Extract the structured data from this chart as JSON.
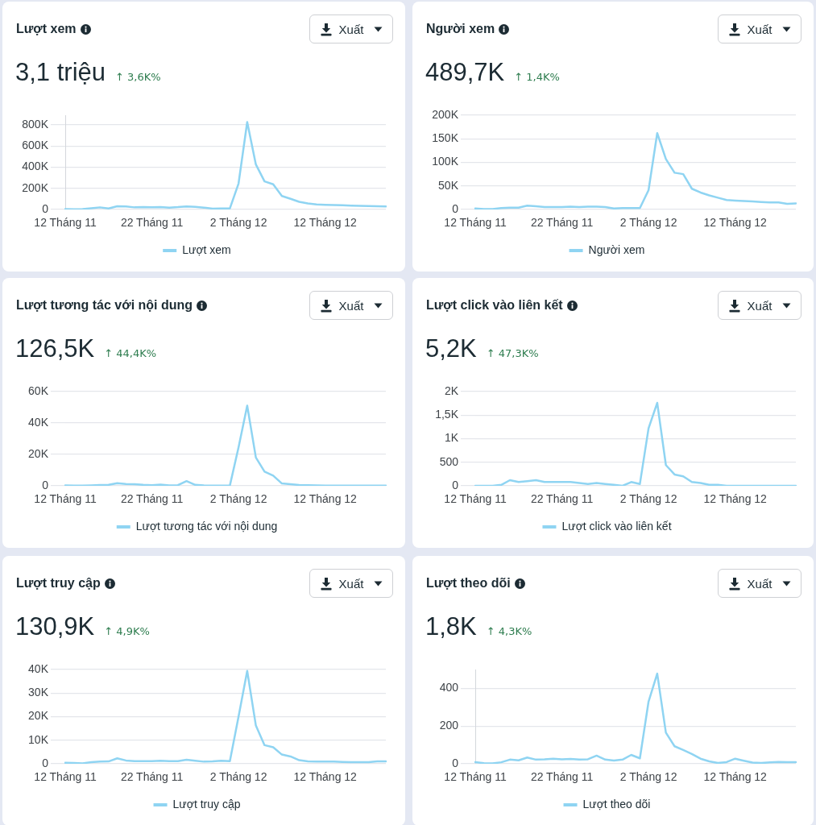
{
  "chart_data": [
    {
      "type": "line",
      "title": "Lượt xem",
      "subtitle": "3,1 triệu",
      "annotations": [
        "↑ 3,6K%",
        "Xuất"
      ],
      "categories": [
        "12 Tháng 11",
        null,
        null,
        null,
        null,
        null,
        null,
        null,
        null,
        null,
        "22 Tháng 11",
        null,
        null,
        null,
        null,
        null,
        null,
        null,
        null,
        null,
        "2 Tháng 12",
        null,
        null,
        null,
        null,
        null,
        null,
        null,
        null,
        null,
        "12 Tháng 12",
        null,
        null,
        null,
        null,
        null,
        null,
        null
      ],
      "series": [
        {
          "name": "Lượt xem",
          "color": "#8fd4f2",
          "values": [
            3000,
            2000,
            4000,
            12000,
            20000,
            10000,
            31000,
            28000,
            20000,
            22000,
            20000,
            22000,
            18000,
            22000,
            28000,
            25000,
            18000,
            8000,
            10000,
            10000,
            245000,
            825000,
            425000,
            265000,
            238000,
            127000,
            101000,
            72000,
            57000,
            47000,
            44000,
            42000,
            39000,
            36000,
            34000,
            32000,
            30000,
            28000
          ]
        }
      ],
      "ylim": [
        0,
        890000
      ],
      "yticks": [
        0,
        {
          "value": 200000,
          "label": "200K"
        },
        {
          "value": 400000,
          "label": "400K"
        },
        {
          "value": 600000,
          "label": "600K"
        },
        {
          "value": 800000,
          "label": "800K"
        }
      ],
      "grid": "y",
      "legend": "bottom"
    },
    {
      "type": "line",
      "title": "Người xem",
      "subtitle": "489,7K",
      "annotations": [
        "↑ 1,4K%",
        "Xuất"
      ],
      "categories": [
        "12 Tháng 11",
        null,
        null,
        null,
        null,
        null,
        null,
        null,
        null,
        null,
        "22 Tháng 11",
        null,
        null,
        null,
        null,
        null,
        null,
        null,
        null,
        null,
        "2 Tháng 12",
        null,
        null,
        null,
        null,
        null,
        null,
        null,
        null,
        null,
        "12 Tháng 12",
        null,
        null,
        null,
        null,
        null,
        null,
        null
      ],
      "series": [
        {
          "name": "Người xem",
          "color": "#8fd4f2",
          "values": [
            2000,
            1000,
            1000,
            3000,
            4000,
            4000,
            8000,
            7000,
            5000,
            5000,
            5000,
            6000,
            5000,
            6000,
            6000,
            5000,
            2000,
            3000,
            3000,
            3000,
            41000,
            162000,
            107000,
            78000,
            75000,
            44000,
            36000,
            30000,
            25000,
            20000,
            19000,
            18000,
            17000,
            16000,
            15000,
            15000,
            12000,
            13000
          ]
        }
      ],
      "ylim": [
        0,
        200000
      ],
      "yticks": [
        0,
        {
          "value": 50000,
          "label": "50K"
        },
        {
          "value": 100000,
          "label": "100K"
        },
        {
          "value": 150000,
          "label": "150K"
        },
        {
          "value": 200000,
          "label": "200K"
        }
      ],
      "grid": "y",
      "legend": "bottom"
    },
    {
      "type": "line",
      "title": "Lượt tương tác với nội dung",
      "subtitle": "126,5K",
      "annotations": [
        "↑ 44,4K%",
        "Xuất"
      ],
      "categories": [
        "12 Tháng 11",
        null,
        null,
        null,
        null,
        null,
        null,
        null,
        null,
        null,
        "22 Tháng 11",
        null,
        null,
        null,
        null,
        null,
        null,
        null,
        null,
        null,
        "2 Tháng 12",
        null,
        null,
        null,
        null,
        null,
        null,
        null,
        null,
        null,
        "12 Tháng 12",
        null,
        null,
        null,
        null,
        null,
        null,
        null
      ],
      "series": [
        {
          "name": "Lượt tương tác với nội dung",
          "color": "#8fd4f2",
          "values": [
            200,
            100,
            100,
            300,
            500,
            600,
            1700,
            1200,
            1000,
            600,
            400,
            800,
            300,
            400,
            3000,
            600,
            200,
            100,
            100,
            200,
            24500,
            51000,
            18000,
            9000,
            6500,
            1500,
            1000,
            500,
            400,
            200,
            100,
            100,
            100,
            100,
            100,
            100,
            100,
            100
          ]
        }
      ],
      "ylim": [
        0,
        60000
      ],
      "yticks": [
        0,
        {
          "value": 20000,
          "label": "20K"
        },
        {
          "value": 40000,
          "label": "40K"
        },
        {
          "value": 60000,
          "label": "60K"
        }
      ],
      "grid": "y",
      "legend": "bottom"
    },
    {
      "type": "line",
      "title": "Lượt click vào liên kết",
      "subtitle": "5,2K",
      "annotations": [
        "↑ 47,3K%",
        "Xuất"
      ],
      "categories": [
        "12 Tháng 11",
        null,
        null,
        null,
        null,
        null,
        null,
        null,
        null,
        null,
        "22 Tháng 11",
        null,
        null,
        null,
        null,
        null,
        null,
        null,
        null,
        null,
        "2 Tháng 12",
        null,
        null,
        null,
        null,
        null,
        null,
        null,
        null,
        null,
        "12 Tháng 12",
        null,
        null,
        null,
        null,
        null,
        null,
        null
      ],
      "series": [
        {
          "name": "Lượt click vào liên kết",
          "color": "#8fd4f2",
          "values": [
            0,
            0,
            0,
            20,
            120,
            80,
            100,
            120,
            80,
            80,
            80,
            80,
            60,
            40,
            60,
            40,
            20,
            0,
            80,
            40,
            1220,
            1760,
            440,
            240,
            200,
            80,
            60,
            20,
            20,
            0,
            0,
            0,
            0,
            0,
            0,
            0,
            0,
            0
          ]
        }
      ],
      "ylim": [
        0,
        2000
      ],
      "yticks": [
        0,
        500,
        {
          "value": 1000,
          "label": "1K"
        },
        {
          "value": 1500,
          "label": "1,5K"
        },
        {
          "value": 2000,
          "label": "2K"
        }
      ],
      "grid": "y",
      "legend": "bottom"
    },
    {
      "type": "line",
      "title": "Lượt truy cập",
      "subtitle": "130,9K",
      "annotations": [
        "↑ 4,9K%",
        "Xuất"
      ],
      "categories": [
        "12 Tháng 11",
        null,
        null,
        null,
        null,
        null,
        null,
        null,
        null,
        null,
        "22 Tháng 11",
        null,
        null,
        null,
        null,
        null,
        null,
        null,
        null,
        null,
        "2 Tháng 12",
        null,
        null,
        null,
        null,
        null,
        null,
        null,
        null,
        null,
        "12 Tháng 12",
        null,
        null,
        null,
        null,
        null,
        null,
        null
      ],
      "series": [
        {
          "name": "Lượt truy cập",
          "color": "#8fd4f2",
          "values": [
            400,
            300,
            200,
            700,
            900,
            1000,
            2300,
            1400,
            1100,
            1100,
            1100,
            1300,
            1100,
            1100,
            1700,
            1300,
            900,
            1000,
            1300,
            1100,
            20000,
            39400,
            16200,
            7900,
            7000,
            3900,
            3100,
            1500,
            1000,
            900,
            900,
            900,
            800,
            700,
            700,
            700,
            1000,
            1000
          ]
        }
      ],
      "ylim": [
        0,
        40000
      ],
      "yticks": [
        0,
        {
          "value": 10000,
          "label": "10K"
        },
        {
          "value": 20000,
          "label": "20K"
        },
        {
          "value": 30000,
          "label": "30K"
        },
        {
          "value": 40000,
          "label": "40K"
        }
      ],
      "grid": "y",
      "legend": "bottom"
    },
    {
      "type": "line",
      "title": "Lượt theo dõi",
      "subtitle": "1,8K",
      "annotations": [
        "↑ 4,3K%",
        "Xuất"
      ],
      "categories": [
        "12 Tháng 11",
        null,
        null,
        null,
        null,
        null,
        null,
        null,
        null,
        null,
        "22 Tháng 11",
        null,
        null,
        null,
        null,
        null,
        null,
        null,
        null,
        null,
        "2 Tháng 12",
        null,
        null,
        null,
        null,
        null,
        null,
        null,
        null,
        null,
        "12 Tháng 12",
        null,
        null,
        null,
        null,
        null,
        null,
        null
      ],
      "series": [
        {
          "name": "Lượt theo dõi",
          "color": "#8fd4f2",
          "values": [
            9,
            3,
            2,
            8,
            22,
            18,
            33,
            22,
            23,
            27,
            24,
            26,
            22,
            24,
            43,
            22,
            17,
            22,
            47,
            29,
            330,
            478,
            165,
            93,
            73,
            52,
            27,
            13,
            4,
            9,
            27,
            16,
            6,
            4,
            7,
            10,
            9,
            9
          ]
        }
      ],
      "ylim": [
        0,
        500
      ],
      "yticks": [
        0,
        200,
        400
      ],
      "grid": "y",
      "legend": "bottom"
    }
  ]
}
